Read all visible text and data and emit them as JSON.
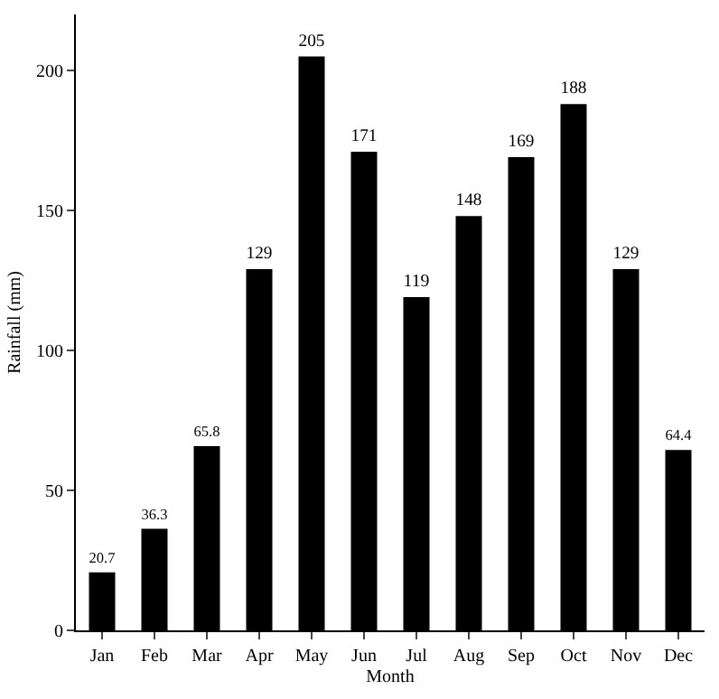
{
  "chart_data": {
    "type": "bar",
    "xlabel": "Month",
    "ylabel": "Rainfall (mm)",
    "categories": [
      "Jan",
      "Feb",
      "Mar",
      "Apr",
      "May",
      "Jun",
      "Jul",
      "Aug",
      "Sep",
      "Oct",
      "Nov",
      "Dec"
    ],
    "values": [
      20.7,
      36.3,
      65.8,
      129,
      205,
      171,
      119,
      148,
      169,
      188,
      129,
      64.4
    ],
    "color": "#000000",
    "ylim": [
      0,
      220
    ],
    "yticks": [
      0,
      50,
      100,
      150,
      200
    ],
    "grid": false,
    "data_labels": true
  }
}
